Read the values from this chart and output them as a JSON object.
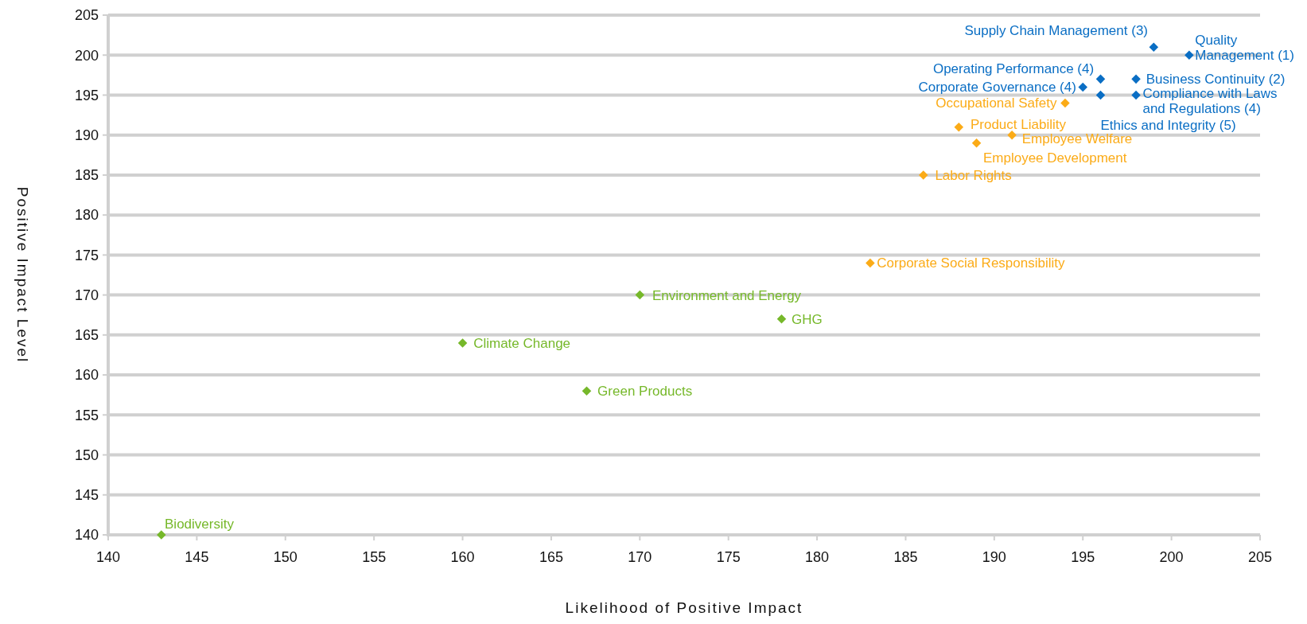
{
  "chart_data": {
    "type": "scatter",
    "xlabel": "Likelihood of Positive Impact",
    "ylabel": "Positive Impact Level",
    "xlim": [
      140,
      205
    ],
    "ylim": [
      140,
      205
    ],
    "xticks": [
      140,
      145,
      150,
      155,
      160,
      165,
      170,
      175,
      180,
      185,
      190,
      195,
      200,
      205
    ],
    "yticks": [
      140,
      145,
      150,
      155,
      160,
      165,
      170,
      175,
      180,
      185,
      190,
      195,
      200,
      205
    ],
    "grid": "y",
    "marker": "diamond",
    "series": [
      {
        "color": "#0a6ec4",
        "x": [
          199,
          201,
          196,
          198,
          195,
          198,
          196
        ],
        "values": [
          201,
          200,
          197,
          197,
          196,
          195,
          195
        ]
      },
      {
        "color": "#fbab17",
        "x": [
          194,
          188,
          191,
          189,
          186,
          183
        ],
        "values": [
          194,
          191,
          190,
          189,
          185,
          174
        ]
      },
      {
        "color": "#76b82a",
        "x": [
          170,
          178,
          160,
          167,
          143
        ],
        "values": [
          170,
          167,
          164,
          158,
          140
        ]
      }
    ],
    "annotations": [
      {
        "text": "Supply Chain Management (3)",
        "x": 199,
        "y": 201
      },
      {
        "text": "Quality\nManagement (1)",
        "x": 201,
        "y": 200
      },
      {
        "text": "Operating Performance (4)",
        "x": 196,
        "y": 197
      },
      {
        "text": "Business Continuity (2)",
        "x": 198,
        "y": 197
      },
      {
        "text": "Corporate Governance (4)",
        "x": 195,
        "y": 196
      },
      {
        "text": "Compliance with Laws\nand Regulations (4)",
        "x": 198,
        "y": 195
      },
      {
        "text": "Ethics and Integrity (5)",
        "x": 196,
        "y": 195
      },
      {
        "text": "Occupational Safety",
        "x": 194,
        "y": 194
      },
      {
        "text": "Product Liability",
        "x": 188,
        "y": 191
      },
      {
        "text": "Employee Welfare",
        "x": 191,
        "y": 190
      },
      {
        "text": "Employee Development",
        "x": 189,
        "y": 189
      },
      {
        "text": "Labor Rights",
        "x": 186,
        "y": 185
      },
      {
        "text": "Corporate Social Responsibility",
        "x": 183,
        "y": 174
      },
      {
        "text": "Environment and Energy",
        "x": 170,
        "y": 170
      },
      {
        "text": "GHG",
        "x": 178,
        "y": 167
      },
      {
        "text": "Climate Change",
        "x": 160,
        "y": 164
      },
      {
        "text": "Green Products",
        "x": 167,
        "y": 158
      },
      {
        "text": "Biodiversity",
        "x": 143,
        "y": 140
      }
    ]
  }
}
